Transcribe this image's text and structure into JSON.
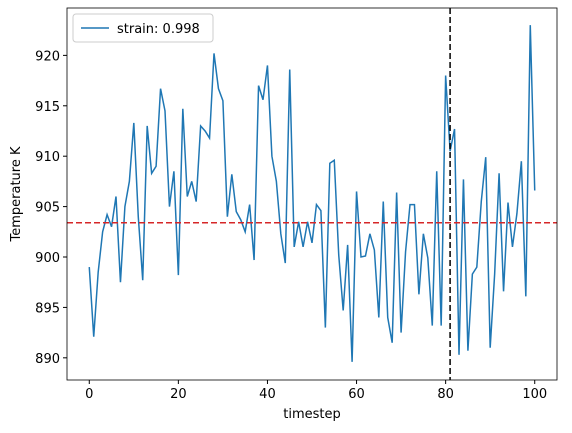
{
  "chart_data": {
    "type": "line",
    "xlabel": "timestep",
    "ylabel": "Temperature K",
    "x": [
      0,
      1,
      2,
      3,
      4,
      5,
      6,
      7,
      8,
      9,
      10,
      11,
      12,
      13,
      14,
      15,
      16,
      17,
      18,
      19,
      20,
      21,
      22,
      23,
      24,
      25,
      26,
      27,
      28,
      29,
      30,
      31,
      32,
      33,
      34,
      35,
      36,
      37,
      38,
      39,
      40,
      41,
      42,
      43,
      44,
      45,
      46,
      47,
      48,
      49,
      50,
      51,
      52,
      53,
      54,
      55,
      56,
      57,
      58,
      59,
      60,
      61,
      62,
      63,
      64,
      65,
      66,
      67,
      68,
      69,
      70,
      71,
      72,
      73,
      74,
      75,
      76,
      77,
      78,
      79,
      80,
      81,
      82,
      83,
      84,
      85,
      86,
      87,
      88,
      89,
      90,
      91,
      92,
      93,
      94,
      95,
      96,
      97,
      98,
      99,
      100
    ],
    "series": [
      {
        "name": "strain: 0.998",
        "color": "#1f77b4",
        "values": [
          899,
          892.1,
          898.5,
          902.5,
          904.2,
          903,
          906,
          897.5,
          905,
          907.5,
          913.3,
          904,
          897.7,
          913,
          908.3,
          909,
          916.7,
          914.5,
          905,
          908.5,
          898.2,
          914.7,
          906,
          907.5,
          905.5,
          913,
          912.5,
          911.8,
          920.2,
          916.7,
          915.5,
          904,
          908.2,
          904.5,
          903.7,
          902.5,
          905.2,
          899.7,
          917,
          915.6,
          919,
          910,
          907.5,
          902.3,
          899.4,
          918.6,
          901,
          903.5,
          901,
          903.5,
          901.4,
          905.2,
          904.6,
          893,
          909.3,
          909.6,
          900.2,
          894.7,
          901.2,
          889.6,
          906.5,
          900,
          900.1,
          902.3,
          900.7,
          894,
          905.5,
          894,
          891.5,
          906.4,
          892.5,
          900.5,
          905.2,
          905.2,
          896.3,
          902.3,
          899.9,
          893.2,
          908.5,
          893.2,
          918,
          910.5,
          912.7,
          890.3,
          907.7,
          890.7,
          898.3,
          899,
          905.5,
          909.9,
          891,
          898.3,
          908.3,
          896.6,
          905.4,
          901,
          904.3,
          909.5,
          896.1,
          923,
          906.6
        ]
      }
    ],
    "hlines": [
      {
        "value": 903.4,
        "color": "#d62728"
      }
    ],
    "vlines": [
      {
        "value": 81,
        "color": "#000000"
      }
    ],
    "xlim": [
      -5,
      105
    ],
    "ylim": [
      887.8,
      924.7
    ],
    "xticks": [
      0,
      20,
      40,
      60,
      80,
      100
    ],
    "yticks": [
      890,
      895,
      900,
      905,
      910,
      915,
      920
    ],
    "legend": "upper left"
  }
}
